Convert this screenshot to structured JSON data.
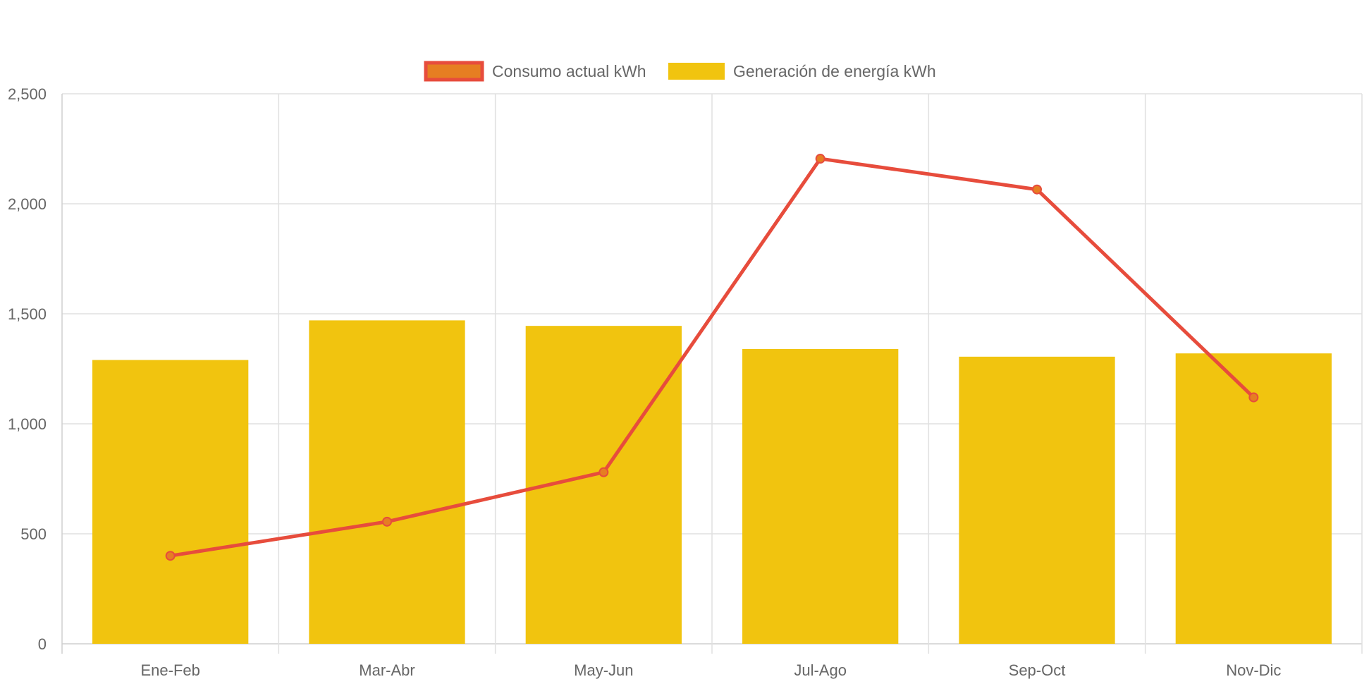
{
  "chart_data": {
    "type": "bar",
    "categories": [
      "Ene-Feb",
      "Mar-Abr",
      "May-Jun",
      "Jul-Ago",
      "Sep-Oct",
      "Nov-Dic"
    ],
    "series": [
      {
        "name": "Consumo actual kWh",
        "type": "line",
        "values": [
          400,
          555,
          780,
          2205,
          2065,
          1120
        ],
        "color": "#e74c3c",
        "point_color": "#e67e22"
      },
      {
        "name": "Generación de energía kWh",
        "type": "bar",
        "values": [
          1290,
          1470,
          1445,
          1340,
          1305,
          1320
        ],
        "color": "#f1c40f"
      }
    ],
    "yticks": [
      "0",
      "500",
      "1,000",
      "1,500",
      "2,000",
      "2,500"
    ],
    "ylim": [
      0,
      2500
    ],
    "grid": true,
    "legend_position": "top-center",
    "title": "",
    "xlabel": "",
    "ylabel": ""
  }
}
